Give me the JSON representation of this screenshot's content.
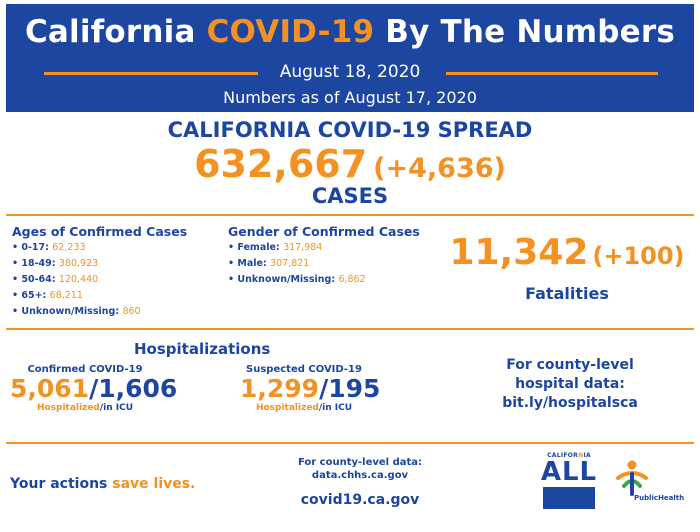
{
  "header": {
    "title_part1": "California",
    "title_accent": "COVID-19",
    "title_part2": "By The Numbers",
    "date": "August 18, 2020",
    "as_of": "Numbers as of August 17, 2020"
  },
  "spread": {
    "title": "CALIFORNIA COVID-19 SPREAD",
    "cases": "632,667",
    "cases_delta": "(+4,636)",
    "label": "CASES"
  },
  "ages": {
    "title": "Ages of Confirmed Cases",
    "items": [
      {
        "label": "• 0-17:",
        "value": "62,233"
      },
      {
        "label": "• 18-49:",
        "value": "380,923"
      },
      {
        "label": "• 50-64:",
        "value": "120,440"
      },
      {
        "label": "• 65+:",
        "value": "68,211"
      },
      {
        "label": "• Unknown/Missing:",
        "value": "860"
      }
    ]
  },
  "gender": {
    "title": "Gender of Confirmed Cases",
    "items": [
      {
        "label": "• Female:",
        "value": "317,984"
      },
      {
        "label": "• Male:",
        "value": "307,821"
      },
      {
        "label": "• Unknown/Missing:",
        "value": "6,862"
      }
    ]
  },
  "fatalities": {
    "count": "11,342",
    "delta": "(+100)",
    "label": "Fatalities"
  },
  "hospitalizations": {
    "title": "Hospitalizations",
    "confirmed": {
      "label": "Confirmed COVID-19",
      "hospitalized": "5,061",
      "separator": "/",
      "icu": "1,606",
      "note_hosp": "Hospitalized",
      "note_icu": "/in ICU"
    },
    "suspected": {
      "label": "Suspected COVID-19",
      "hospitalized": "1,299",
      "separator": "/",
      "icu": "195",
      "note_hosp": "Hospitalized",
      "note_icu": "/in ICU"
    },
    "county": {
      "line1": "For county-level",
      "line2": "hospital data:",
      "link": "bit.ly/hospitalsca"
    }
  },
  "footer": {
    "slogan_part1": "Your actions",
    "slogan_accent": "save lives.",
    "county_label1": "For county-level data:",
    "county_link": "data.chhs.ca.gov",
    "site": "covid19.ca.gov"
  },
  "logos": {
    "ca_small_1": "CALIFOR",
    "ca_small_accent": "N",
    "ca_small_2": "IA",
    "ca_all": "ALL",
    "ph_text": "PublicHealth"
  },
  "colors": {
    "brand_blue": "#1d46a0",
    "accent_orange": "#f39122"
  }
}
